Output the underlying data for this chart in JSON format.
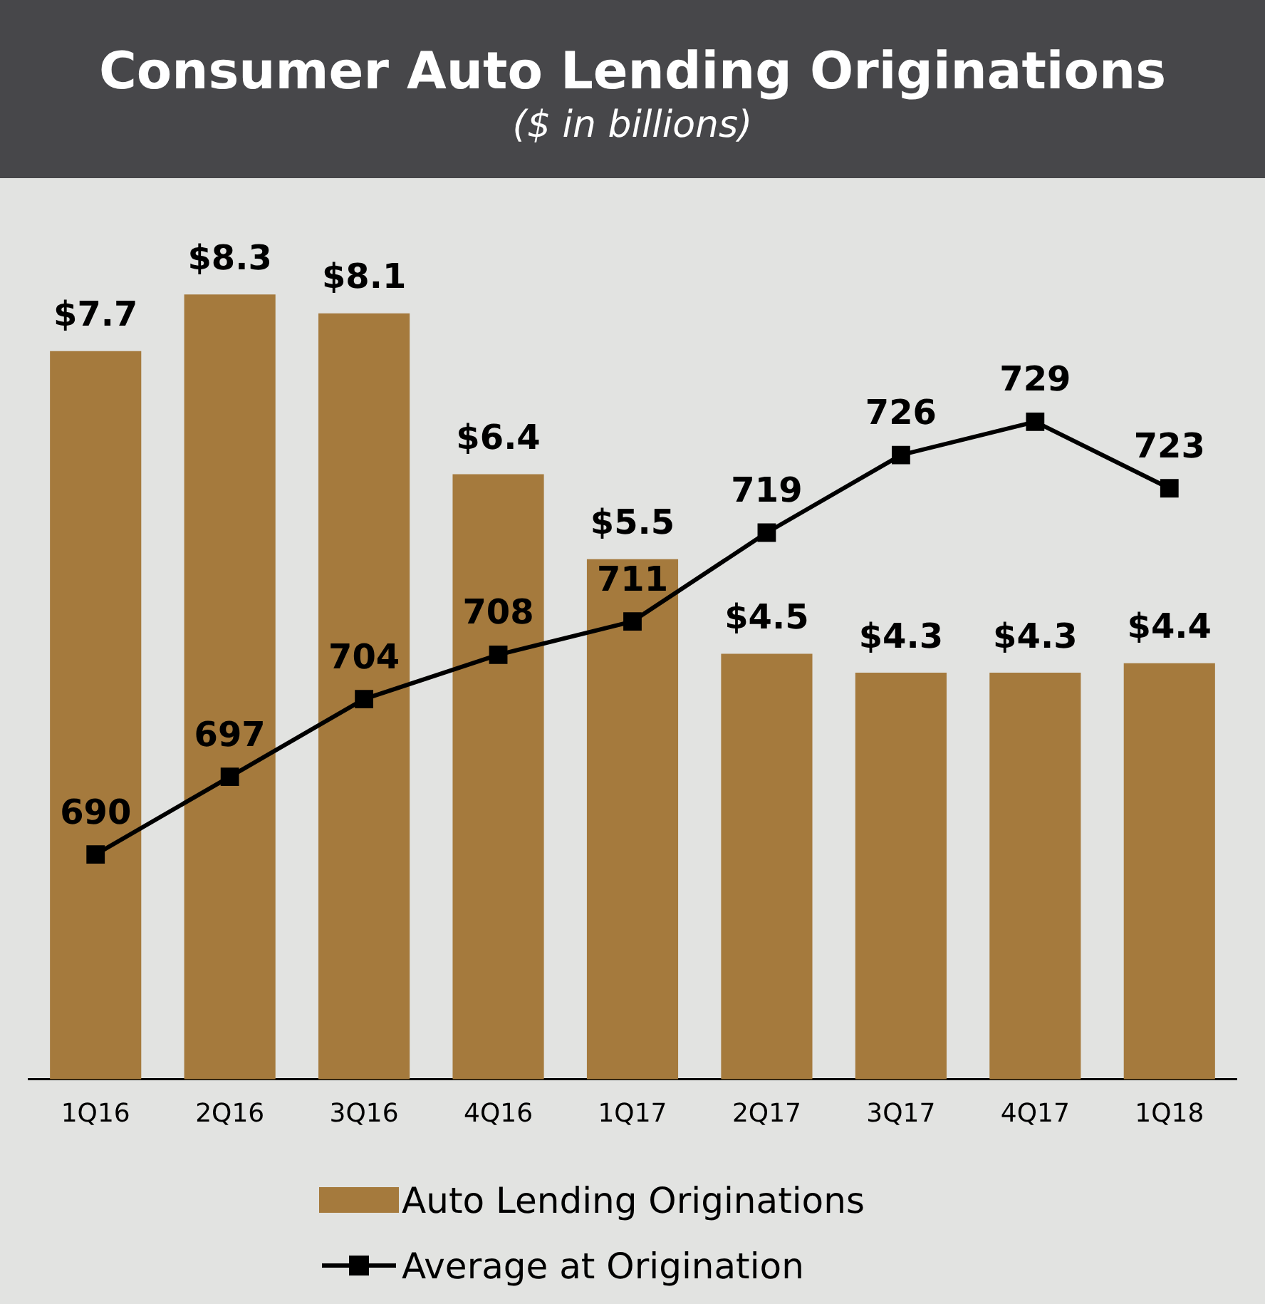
{
  "chart_data": {
    "type": "bar",
    "title": "Consumer Auto Lending Originations",
    "subtitle": "($ in billions)",
    "categories": [
      "1Q16",
      "2Q16",
      "3Q16",
      "4Q16",
      "1Q17",
      "2Q17",
      "3Q17",
      "4Q17",
      "1Q18"
    ],
    "series": [
      {
        "name": "Auto Lending Originations",
        "color": "#a57a3d",
        "values": [
          7.7,
          8.3,
          8.1,
          6.4,
          5.5,
          4.5,
          4.3,
          4.3,
          4.4
        ],
        "value_labels": [
          "$7.7",
          "$8.3",
          "$8.1",
          "$6.4",
          "$5.5",
          "$4.5",
          "$4.3",
          "$4.3",
          "$4.4"
        ]
      },
      {
        "name": "Average at Origination",
        "type": "line",
        "axis": "y2",
        "color": "#000000",
        "values": [
          690,
          697,
          704,
          708,
          711,
          719,
          726,
          729,
          723
        ]
      }
    ],
    "tick_labels": "x",
    "grid": false,
    "legend": "bottom",
    "marker": "square",
    "line_style": "solid",
    "data_labels": true
  }
}
